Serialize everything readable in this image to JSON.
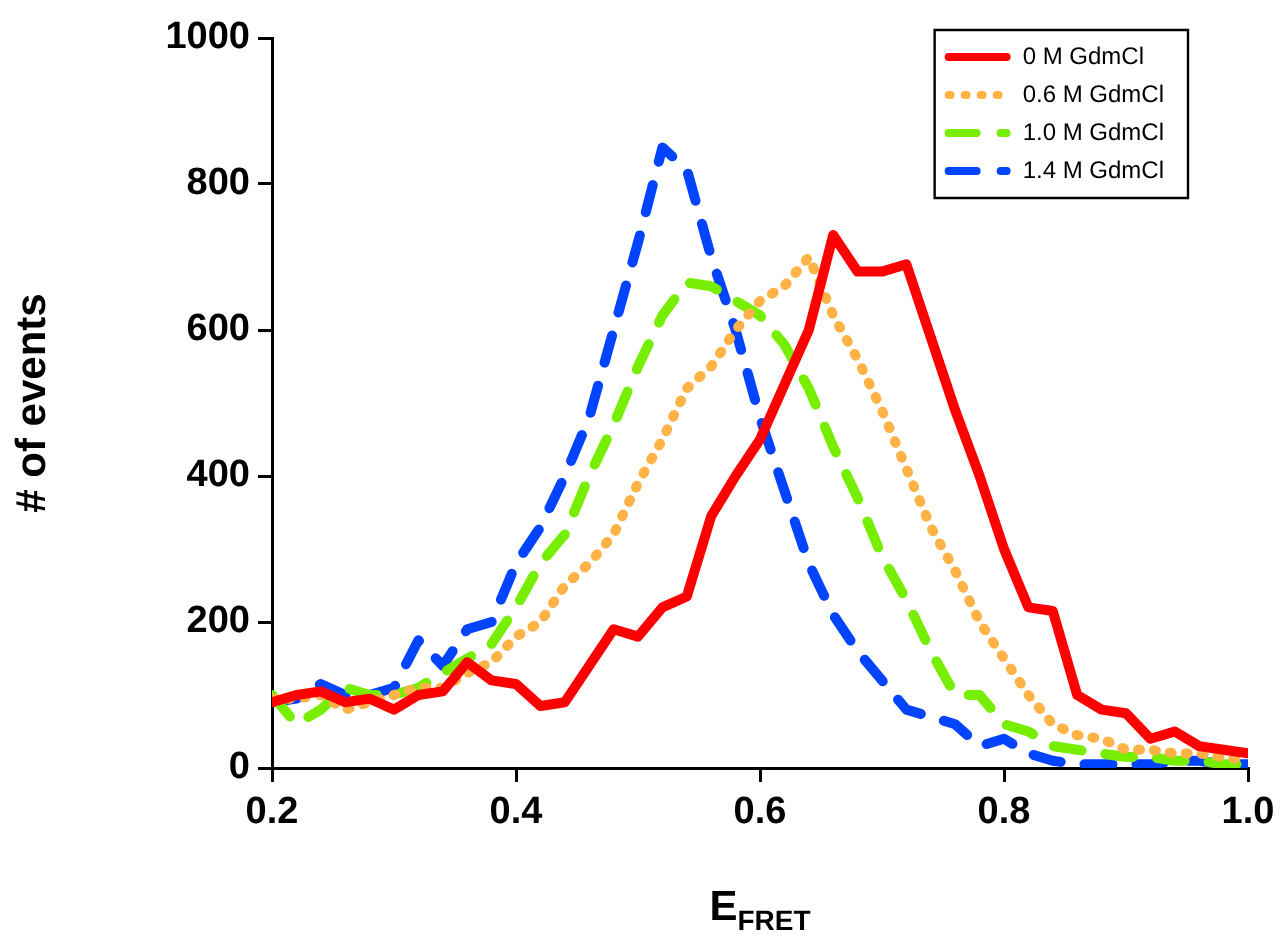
{
  "chart_data": {
    "type": "line",
    "xlabel": "E$_{FRET}$",
    "ylabel": "# of events",
    "x": [
      0.2,
      0.22,
      0.24,
      0.26,
      0.28,
      0.3,
      0.32,
      0.34,
      0.36,
      0.38,
      0.4,
      0.42,
      0.44,
      0.46,
      0.48,
      0.5,
      0.52,
      0.54,
      0.56,
      0.58,
      0.6,
      0.62,
      0.64,
      0.66,
      0.68,
      0.7,
      0.72,
      0.74,
      0.76,
      0.78,
      0.8,
      0.82,
      0.84,
      0.86,
      0.88,
      0.9,
      0.92,
      0.94,
      0.96,
      0.98,
      1.0
    ],
    "series": [
      {
        "name": "0 M GdmCl",
        "color": "#ff0000",
        "line_style": "solid",
        "values": [
          90,
          100,
          105,
          90,
          95,
          80,
          100,
          105,
          145,
          120,
          115,
          85,
          90,
          140,
          190,
          180,
          220,
          235,
          345,
          400,
          450,
          525,
          600,
          730,
          680,
          680,
          690,
          590,
          490,
          400,
          300,
          220,
          215,
          100,
          80,
          75,
          40,
          50,
          30,
          25,
          20
        ]
      },
      {
        "name": "0.6 M GdmCl",
        "color": "#ffb347",
        "line_style": "dotted",
        "values": [
          95,
          95,
          100,
          80,
          90,
          100,
          110,
          110,
          130,
          145,
          180,
          200,
          250,
          280,
          320,
          390,
          450,
          520,
          550,
          600,
          640,
          660,
          700,
          620,
          560,
          490,
          410,
          330,
          270,
          200,
          150,
          100,
          60,
          45,
          40,
          25,
          25,
          20,
          20,
          15,
          10
        ]
      },
      {
        "name": "1.0 M GdmCl",
        "color": "#77ee00",
        "line_style": "dashed",
        "values": [
          100,
          60,
          80,
          110,
          100,
          100,
          110,
          130,
          150,
          170,
          220,
          280,
          320,
          400,
          470,
          550,
          620,
          665,
          660,
          640,
          620,
          580,
          520,
          440,
          370,
          290,
          230,
          160,
          100,
          100,
          60,
          50,
          30,
          25,
          20,
          15,
          15,
          10,
          10,
          5,
          5
        ]
      },
      {
        "name": "1.4 M GdmCl",
        "color": "#0044ff",
        "line_style": "dashed",
        "values": [
          90,
          95,
          115,
          100,
          100,
          110,
          175,
          140,
          190,
          200,
          280,
          330,
          400,
          480,
          600,
          720,
          850,
          820,
          700,
          600,
          480,
          380,
          280,
          210,
          160,
          120,
          80,
          70,
          60,
          30,
          40,
          20,
          10,
          5,
          5,
          5,
          5,
          10,
          10,
          5,
          5
        ]
      }
    ],
    "xlim": [
      0.2,
      1.0
    ],
    "xticks": [
      0.2,
      0.4,
      0.6,
      0.8,
      {
        "value": 1,
        "label": "1.0"
      }
    ],
    "ylim": [
      0,
      1000
    ],
    "yticks": [
      0,
      200,
      400,
      600,
      800,
      1000
    ],
    "grid": false,
    "legend": "top right",
    "marker": "none"
  }
}
